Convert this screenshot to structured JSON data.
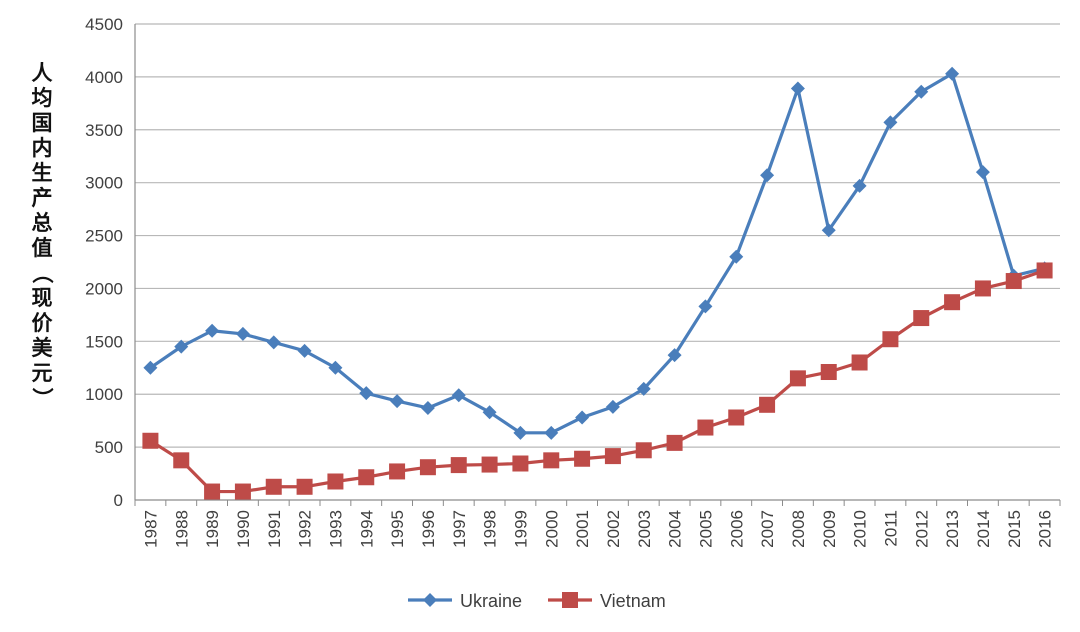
{
  "chart_data": {
    "type": "line",
    "ylabel": "人均国内生产总值（现价美元）",
    "ylim": [
      0,
      4500
    ],
    "y_ticks": [
      0,
      500,
      1000,
      1500,
      2000,
      2500,
      3000,
      3500,
      4000,
      4500
    ],
    "grid": "horizontal",
    "legend_position": "bottom",
    "categories": [
      "1987",
      "1988",
      "1989",
      "1990",
      "1991",
      "1992",
      "1993",
      "1994",
      "1995",
      "1996",
      "1997",
      "1998",
      "1999",
      "2000",
      "2001",
      "2002",
      "2003",
      "2004",
      "2005",
      "2006",
      "2007",
      "2008",
      "2009",
      "2010",
      "2011",
      "2012",
      "2013",
      "2014",
      "2015",
      "2016"
    ],
    "series": [
      {
        "name": "Ukraine",
        "color": "#4a7ebb",
        "marker": "diamond",
        "values": [
          1250,
          1450,
          1600,
          1570,
          1490,
          1410,
          1250,
          1010,
          935,
          870,
          990,
          830,
          635,
          635,
          780,
          880,
          1050,
          1370,
          1830,
          2300,
          3070,
          3890,
          2550,
          2970,
          3570,
          3860,
          4030,
          3100,
          2120,
          2190
        ]
      },
      {
        "name": "Vietnam",
        "color": "#be4b48",
        "marker": "square",
        "values": [
          560,
          375,
          80,
          80,
          125,
          125,
          175,
          215,
          270,
          310,
          330,
          335,
          345,
          375,
          390,
          415,
          470,
          540,
          685,
          780,
          900,
          1150,
          1210,
          1300,
          1520,
          1720,
          1870,
          2000,
          2070,
          2170
        ]
      }
    ]
  }
}
